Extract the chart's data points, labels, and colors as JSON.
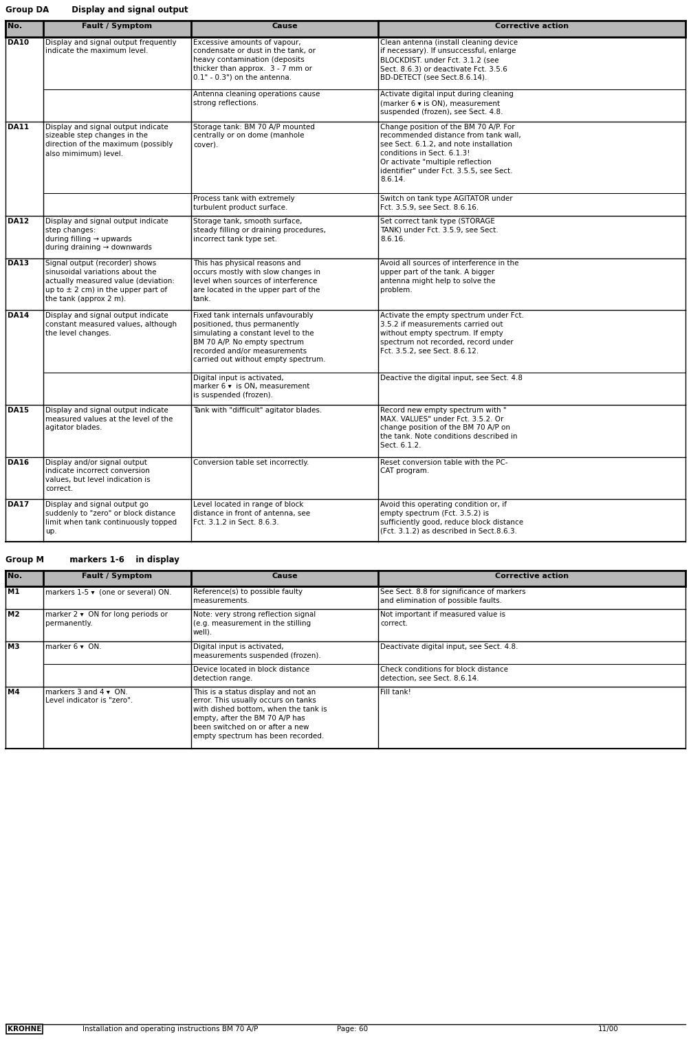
{
  "page_width": 10.05,
  "page_height": 15.26,
  "group_da_header": "Group DA        Display and signal output",
  "group_m_header": "Group M         markers 1-6    in display",
  "col_headers": [
    "No.",
    "Fault / Symptom",
    "Cause",
    "Corrective action"
  ],
  "footer_logo": "KROHNE",
  "footer_center": "Installation and operating instructions BM 70 A/P",
  "footer_page": "Page: 60",
  "footer_date": "11/00",
  "table_da": [
    {
      "no": "DA10",
      "symptom": "Display and signal output frequently\nindicate the maximum level.",
      "cause_rows": [
        "Excessive amounts of vapour,\ncondensate or dust in the tank, or\nheavy contamination (deposits\nthicker than approx.  3 - 7 mm or\n0.1\" - 0.3\") on the antenna.",
        "Antenna cleaning operations cause\nstrong reflections."
      ],
      "corrective_rows": [
        "Clean antenna (install cleaning device\nif necessary). If unsuccessful, enlarge\nBLOCKDIST. under Fct. 3.1.2 (see\nSect. 8.6.3) or deactivate Fct. 3.5.6\nBD-DETECT (see Sect.8.6.14).",
        "Activate digital input during cleaning\n(marker 6 ▾ is ON), measurement\nsuspended (frozen), see Sect. 4.8."
      ]
    },
    {
      "no": "DA11",
      "symptom": "Display and signal output indicate\nsizeable step changes in the\ndirection of the maximum (possibly\nalso mimimum) level.",
      "cause_rows": [
        "Storage tank: BM 70 A/P mounted\ncentrally or on dome (manhole\ncover).",
        "Process tank with extremely\nturbulent product surface."
      ],
      "corrective_rows": [
        "Change position of the BM 70 A/P. For\nrecommended distance from tank wall,\nsee Sect. 6.1.2, and note installation\nconditions in Sect. 6.1.3!\nOr activate \"multiple reflection\nidentifier\" under Fct. 3.5.5, see Sect.\n8.6.14.",
        "Switch on tank type AGITATOR under\nFct. 3.5.9, see Sect. 8.6.16."
      ]
    },
    {
      "no": "DA12",
      "symptom": "Display and signal output indicate\nstep changes:\nduring filling → upwards\nduring draining → downwards",
      "cause_rows": [
        "Storage tank, smooth surface,\nsteady filling or draining procedures,\nincorrect tank type set."
      ],
      "corrective_rows": [
        "Set correct tank type (STORAGE\nTANK) under Fct. 3.5.9, see Sect.\n8.6.16."
      ]
    },
    {
      "no": "DA13",
      "symptom": "Signal output (recorder) shows\nsinusoidal variations about the\nactually measured value (deviation:\nup to ± 2 cm) in the upper part of\nthe tank (approx 2 m).",
      "cause_rows": [
        "This has physical reasons and\noccurs mostly with slow changes in\nlevel when sources of interference\nare located in the upper part of the\ntank."
      ],
      "corrective_rows": [
        "Avoid all sources of interference in the\nupper part of the tank. A bigger\nantenna might help to solve the\nproblem."
      ]
    },
    {
      "no": "DA14",
      "symptom": "Display and signal output indicate\nconstant measured values, although\nthe level changes.",
      "cause_rows": [
        "Fixed tank internals unfavourably\npositioned, thus permanently\nsimulating a constant level to the\nBM 70 A/P. No empty spectrum\nrecorded and/or measurements\ncarried out without empty spectrum.",
        "Digital input is activated,\nmarker 6 ▾  is ON, measurement\nis suspended (frozen)."
      ],
      "corrective_rows": [
        "Activate the empty spectrum under Fct.\n3.5.2 if measurements carried out\nwithout empty spectrum. If empty\nspectrum not recorded, record under\nFct. 3.5.2, see Sect. 8.6.12.",
        "Deactive the digital input, see Sect. 4.8"
      ]
    },
    {
      "no": "DA15",
      "symptom": "Display and signal output indicate\nmeasured values at the level of the\nagitator blades.",
      "cause_rows": [
        "Tank with \"difficult\" agitator blades."
      ],
      "corrective_rows": [
        "Record new empty spectrum with \"\nMAX. VALUES\" under Fct. 3.5.2. Or\nchange position of the BM 70 A/P on\nthe tank. Note conditions described in\nSect. 6.1.2."
      ]
    },
    {
      "no": "DA16",
      "symptom": "Display and/or signal output\nindicate incorrect conversion\nvalues, but level indication is\ncorrect.",
      "cause_rows": [
        "Conversion table set incorrectly."
      ],
      "corrective_rows": [
        "Reset conversion table with the PC-\nCAT program."
      ]
    },
    {
      "no": "DA17",
      "symptom": "Display and signal output go\nsuddenly to \"zero\" or block distance\nlimit when tank continuously topped\nup.",
      "cause_rows": [
        "Level located in range of block\ndistance in front of antenna, see\nFct. 3.1.2 in Sect. 8.6.3."
      ],
      "corrective_rows": [
        "Avoid this operating condition or, if\nempty spectrum (Fct. 3.5.2) is\nsufficiently good, reduce block distance\n(Fct. 3.1.2) as described in Sect.8.6.3."
      ]
    }
  ],
  "table_m": [
    {
      "no": "M1",
      "symptom": "markers 1-5 ▾  (one or several) ON.",
      "cause_rows": [
        "Reference(s) to possible faulty\nmeasurements."
      ],
      "corrective_rows": [
        "See Sect. 8.8 for significance of markers\nand elimination of possible faults."
      ]
    },
    {
      "no": "M2",
      "symptom": "marker 2 ▾  ON for long periods or\npermanently.",
      "cause_rows": [
        "Note: very strong reflection signal\n(e.g. measurement in the stilling\nwell)."
      ],
      "corrective_rows": [
        "Not important if measured value is\ncorrect."
      ]
    },
    {
      "no": "M3",
      "symptom": "marker 6 ▾  ON.",
      "cause_rows": [
        "Digital input is activated,\nmeasurements suspended (frozen).",
        "Device located in block distance\ndetection range."
      ],
      "corrective_rows": [
        "Deactivate digital input, see Sect. 4.8.",
        "Check conditions for block distance\ndetection, see Sect. 8.6.14."
      ]
    },
    {
      "no": "M4",
      "symptom": "markers 3 and 4 ▾  ON.\nLevel indicator is \"zero\".",
      "cause_rows": [
        "This is a status display and not an\nerror. This usually occurs on tanks\nwith dished bottom, when the tank is\nempty, after the BM 70 A/P has\nbeen switched on or after a new\nempty spectrum has been recorded."
      ],
      "corrective_rows": [
        "Fill tank!"
      ]
    }
  ]
}
